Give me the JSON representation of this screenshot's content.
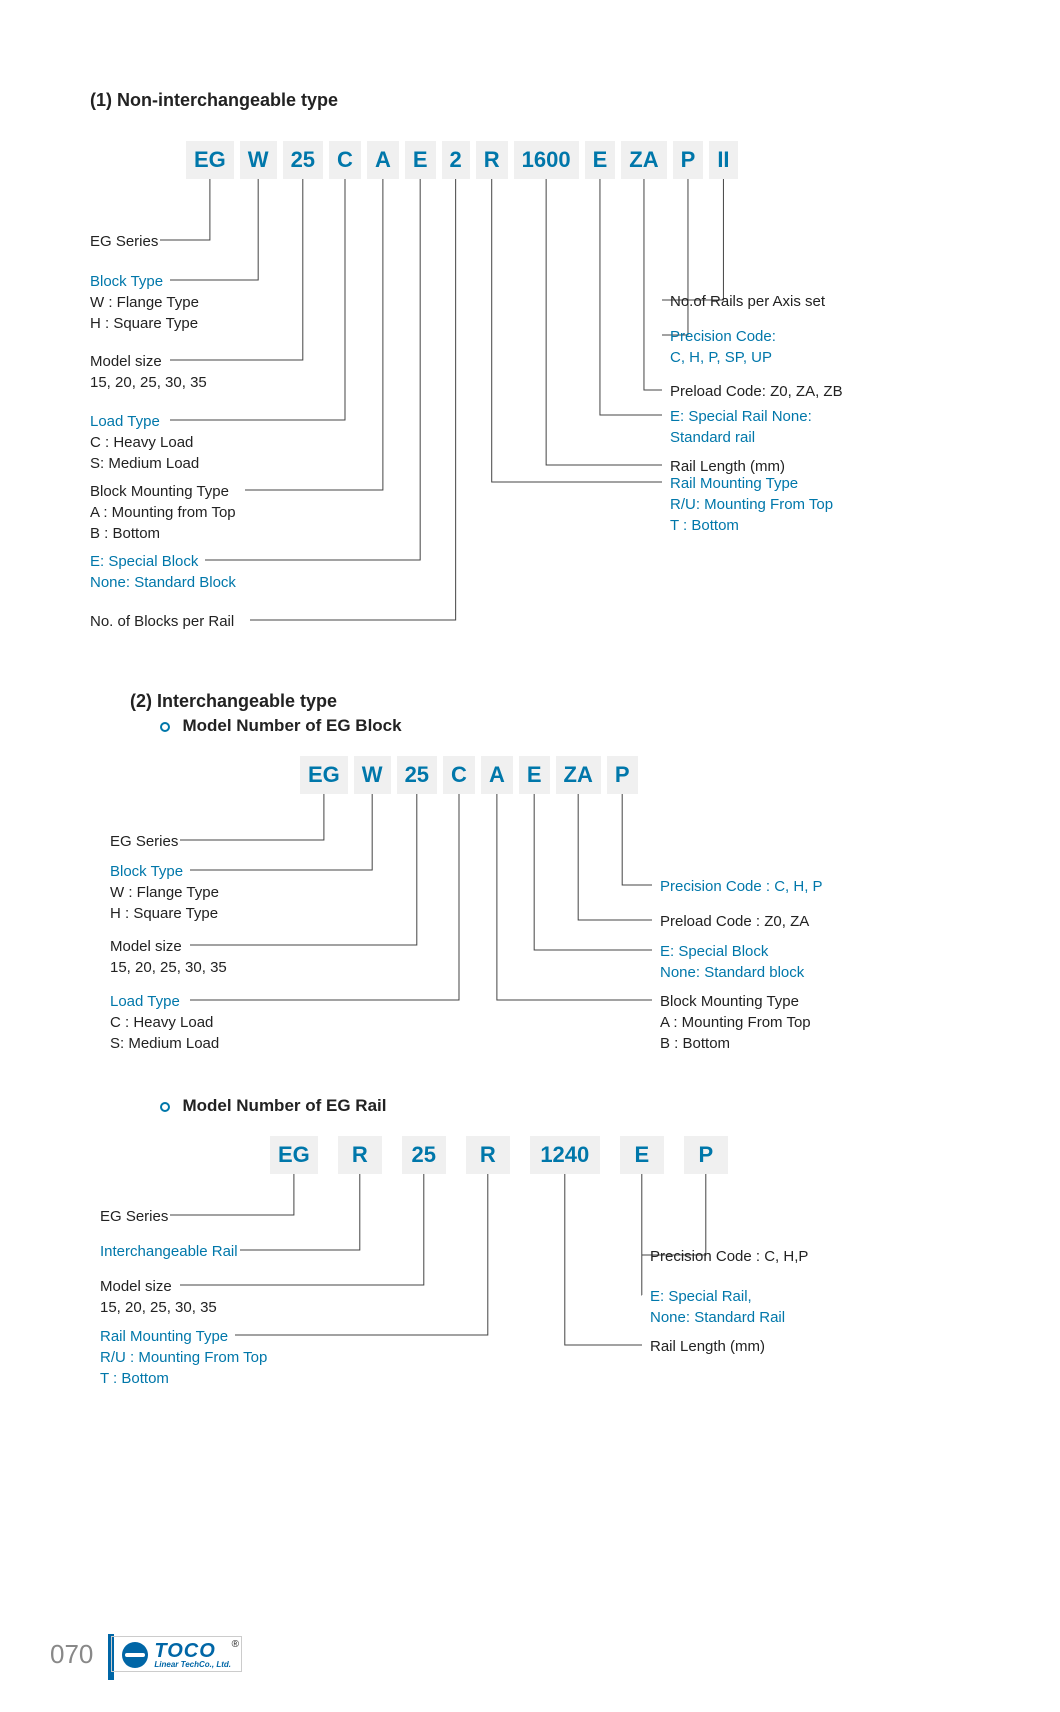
{
  "page_number": "070",
  "brand": {
    "name": "TOCO",
    "subtitle": "Linear TechCo., Ltd."
  },
  "section1": {
    "title": "(1) Non-interchangeable type",
    "code": [
      "EG",
      "W",
      "25",
      "C",
      "A",
      "E",
      "2",
      "R",
      "1600",
      "E",
      "ZA",
      "P",
      "II"
    ],
    "left_legends": [
      {
        "title": "EG Series",
        "title_color": "#222",
        "desc": []
      },
      {
        "title": "Block Type",
        "title_color": "#0077aa",
        "desc": [
          "W : Flange Type",
          "H : Square Type"
        ]
      },
      {
        "title": "Model size",
        "title_color": "#222",
        "desc": [
          "15, 20, 25, 30, 35"
        ]
      },
      {
        "title": "Load Type",
        "title_color": "#0077aa",
        "desc": [
          "C : Heavy Load",
          "S: Medium Load"
        ]
      },
      {
        "title": "Block Mounting Type",
        "title_color": "#222",
        "desc": [
          "A : Mounting from Top",
          "B : Bottom"
        ]
      },
      {
        "title": "E: Special Block",
        "title_color": "#0077aa",
        "desc": [
          "None: Standard Block"
        ],
        "desc_color": "#0077aa"
      },
      {
        "title": "No. of Blocks per Rail",
        "title_color": "#222",
        "desc": []
      }
    ],
    "right_legends": [
      {
        "title": "No.of Rails per Axis set",
        "title_color": "#222",
        "desc": []
      },
      {
        "title": "Precision Code:",
        "title_color": "#0077aa",
        "desc": [
          "C, H, P, SP, UP"
        ],
        "desc_color": "#0077aa"
      },
      {
        "title": "Preload Code: Z0, ZA, ZB",
        "title_color": "#222",
        "desc": []
      },
      {
        "title": "E: Special Rail None:",
        "title_color": "#0077aa",
        "desc": [
          "Standard rail"
        ],
        "desc_color": "#0077aa"
      },
      {
        "title": "Rail Length (mm)",
        "title_color": "#222",
        "desc": []
      },
      {
        "title": "Rail Mounting Type",
        "title_color": "#0077aa",
        "desc": [
          "R/U: Mounting From Top",
          "T : Bottom"
        ],
        "desc_color": "#0077aa"
      }
    ]
  },
  "section2": {
    "title": "(2) Interchangeable type",
    "sub_a": "Model Number of EG Block",
    "code_a": [
      "EG",
      "W",
      "25",
      "C",
      "A",
      "E",
      "ZA",
      "P"
    ],
    "left_legends_a": [
      {
        "title": "EG Series",
        "title_color": "#222",
        "desc": []
      },
      {
        "title": "Block Type",
        "title_color": "#0077aa",
        "desc": [
          "W : Flange Type",
          "H : Square Type"
        ]
      },
      {
        "title": "Model size",
        "title_color": "#222",
        "desc": [
          "15, 20, 25, 30, 35"
        ]
      },
      {
        "title": "Load Type",
        "title_color": "#0077aa",
        "desc": [
          "C : Heavy Load",
          "S: Medium Load"
        ]
      }
    ],
    "right_legends_a": [
      {
        "title": "Precision Code : C, H, P",
        "title_color": "#0077aa",
        "desc": []
      },
      {
        "title": "Preload Code : Z0, ZA",
        "title_color": "#222",
        "desc": []
      },
      {
        "title": "E: Special Block",
        "title_color": "#0077aa",
        "desc": [
          "None: Standard block"
        ],
        "desc_color": "#0077aa"
      },
      {
        "title": "Block Mounting Type",
        "title_color": "#222",
        "desc": [
          "A : Mounting From Top",
          "B : Bottom"
        ]
      }
    ],
    "sub_b": "Model Number of EG Rail",
    "code_b": [
      "EG",
      "R",
      "25",
      "R",
      "1240",
      "E",
      "P"
    ],
    "left_legends_b": [
      {
        "title": "EG Series",
        "title_color": "#222",
        "desc": []
      },
      {
        "title": "Interchangeable Rail",
        "title_color": "#0077aa",
        "desc": []
      },
      {
        "title": "Model size",
        "title_color": "#222",
        "desc": [
          "15, 20, 25, 30, 35"
        ]
      },
      {
        "title": "Rail Mounting Type",
        "title_color": "#0077aa",
        "desc": [
          "R/U : Mounting From Top",
          "T : Bottom"
        ],
        "desc_color": "#0077aa"
      }
    ],
    "right_legends_b": [
      {
        "title": "Precision Code : C, H,P",
        "title_color": "#222",
        "desc": []
      },
      {
        "title": "E: Special Rail,",
        "title_color": "#0077aa",
        "desc": [
          "None: Standard Rail"
        ],
        "desc_color": "#0077aa"
      },
      {
        "title": "Rail Length (mm)",
        "title_color": "#222",
        "desc": []
      }
    ]
  }
}
